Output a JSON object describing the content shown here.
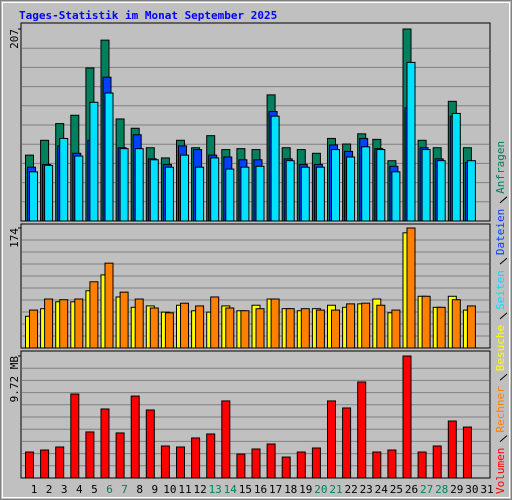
{
  "chart_data": [
    {
      "type": "bar",
      "title": "Tages-Statistik im Monat September 2025",
      "ylim": [
        0,
        207
      ],
      "yticks": [
        207
      ],
      "grid": true,
      "series": [
        {
          "name": "Anfragen",
          "color": "#00805c",
          "values": [
            71,
            87,
            105,
            114,
            165,
            195,
            110,
            100,
            79,
            68,
            87,
            79,
            92,
            77,
            78,
            77,
            136,
            79,
            77,
            73,
            89,
            83,
            94,
            88,
            65,
            207,
            87,
            79,
            129,
            79,
            null
          ]
        },
        {
          "name": "Dateien",
          "color": "#0040ff",
          "values": [
            58,
            61,
            81,
            73,
            87,
            155,
            79,
            93,
            67,
            61,
            81,
            77,
            71,
            69,
            66,
            66,
            118,
            67,
            61,
            61,
            82,
            75,
            89,
            78,
            59,
            122,
            79,
            67,
            113,
            63,
            null
          ]
        },
        {
          "name": "Seiten",
          "color": "#00e0ff",
          "values": [
            53,
            60,
            89,
            70,
            128,
            138,
            78,
            78,
            66,
            58,
            71,
            58,
            68,
            56,
            58,
            59,
            113,
            65,
            58,
            58,
            77,
            69,
            80,
            77,
            53,
            171,
            77,
            65,
            116,
            65,
            null
          ]
        }
      ]
    },
    {
      "type": "bar",
      "ylim": [
        0,
        174
      ],
      "yticks": [
        174
      ],
      "grid": true,
      "series": [
        {
          "name": "Besuche",
          "color": "#ffff00",
          "values": [
            46,
            57,
            67,
            67,
            83,
            106,
            74,
            59,
            61,
            52,
            62,
            54,
            52,
            61,
            54,
            62,
            71,
            57,
            54,
            57,
            62,
            59,
            64,
            71,
            51,
            167,
            75,
            59,
            75,
            55,
            null
          ]
        },
        {
          "name": "Rechner",
          "color": "#ff8000",
          "values": [
            55,
            71,
            70,
            71,
            96,
            123,
            81,
            71,
            58,
            51,
            65,
            61,
            74,
            58,
            54,
            57,
            71,
            57,
            57,
            55,
            55,
            64,
            65,
            62,
            55,
            174,
            75,
            59,
            70,
            61,
            null
          ]
        }
      ]
    },
    {
      "type": "bar",
      "ylim": [
        0,
        9.72
      ],
      "yticks": [
        {
          "value": 9.72,
          "label": "9.72 MB"
        }
      ],
      "grid": true,
      "categories": [
        "1",
        "2",
        "3",
        "4",
        "5",
        "6",
        "7",
        "8",
        "9",
        "10",
        "11",
        "12",
        "13",
        "14",
        "15",
        "16",
        "17",
        "18",
        "19",
        "20",
        "21",
        "22",
        "23",
        "24",
        "25",
        "26",
        "27",
        "28",
        "29",
        "30",
        "31"
      ],
      "category_colors": [
        "#000000",
        "#000000",
        "#000000",
        "#000000",
        "#000000",
        "#00805c",
        "#00805c",
        "#000000",
        "#000000",
        "#000000",
        "#000000",
        "#000000",
        "#00805c",
        "#00805c",
        "#000000",
        "#000000",
        "#000000",
        "#000000",
        "#000000",
        "#00805c",
        "#00805c",
        "#000000",
        "#000000",
        "#000000",
        "#000000",
        "#000000",
        "#00805c",
        "#00805c",
        "#000000",
        "#000000",
        "#000000"
      ],
      "series": [
        {
          "name": "Volumen",
          "color": "#ff0000",
          "values": [
            2.07,
            2.23,
            2.47,
            6.69,
            3.67,
            5.5,
            3.59,
            6.53,
            5.42,
            2.55,
            2.47,
            3.19,
            3.51,
            6.14,
            1.91,
            2.31,
            2.71,
            1.67,
            2.07,
            2.39,
            6.14,
            5.58,
            7.65,
            2.07,
            2.23,
            9.72,
            2.07,
            2.55,
            4.54,
            4.06,
            null
          ]
        }
      ]
    }
  ]
}
